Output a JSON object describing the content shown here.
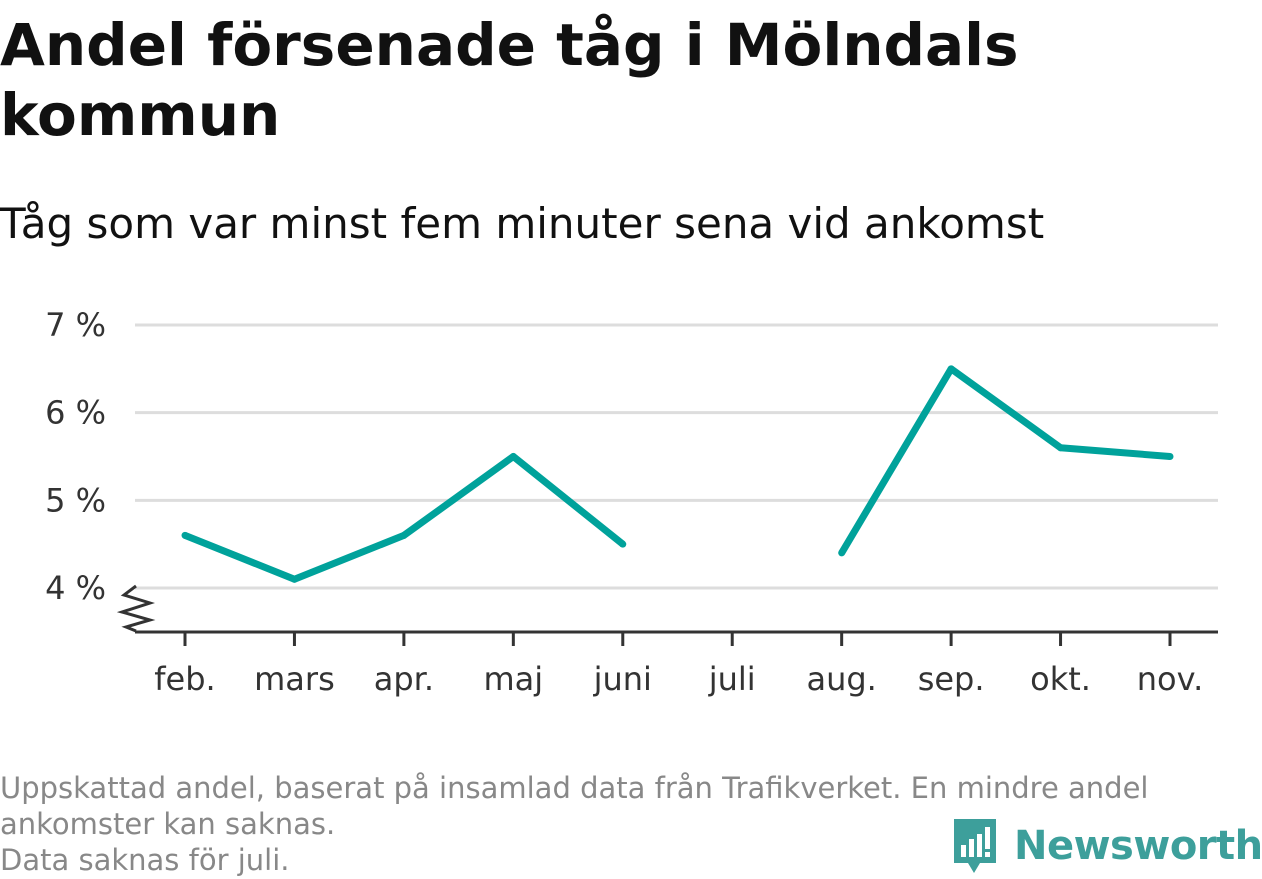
{
  "title": "Andel försenade tåg i Mölndals kommun",
  "subtitle": "Tåg som var minst fem minuter sena vid ankomst",
  "chart_data": {
    "type": "line",
    "categories": [
      "feb.",
      "mars",
      "apr.",
      "maj",
      "juni",
      "juli",
      "aug.",
      "sep.",
      "okt.",
      "nov."
    ],
    "values": [
      4.6,
      4.1,
      4.6,
      5.5,
      4.5,
      null,
      4.4,
      6.5,
      5.6,
      5.5
    ],
    "yticks": [
      4,
      5,
      6,
      7
    ],
    "ytick_labels": [
      "4 %",
      "5 %",
      "6 %",
      "7 %"
    ],
    "ylim": [
      3.5,
      7
    ],
    "broken_axis": true,
    "grid": true,
    "line_color": "#00a29b",
    "grid_color": "#dddddd",
    "axis_color": "#333333"
  },
  "footer": {
    "note_line1": "Uppskattad andel, baserat på insamlad data från Trafikverket. En mindre andel",
    "note_line2": "ankomster kan saknas.",
    "note_line3": "Data saknas för juli."
  },
  "brand": {
    "name": "Newsworthy",
    "color": "#3d9f9b",
    "icon": "newsworthy-logo-icon"
  }
}
